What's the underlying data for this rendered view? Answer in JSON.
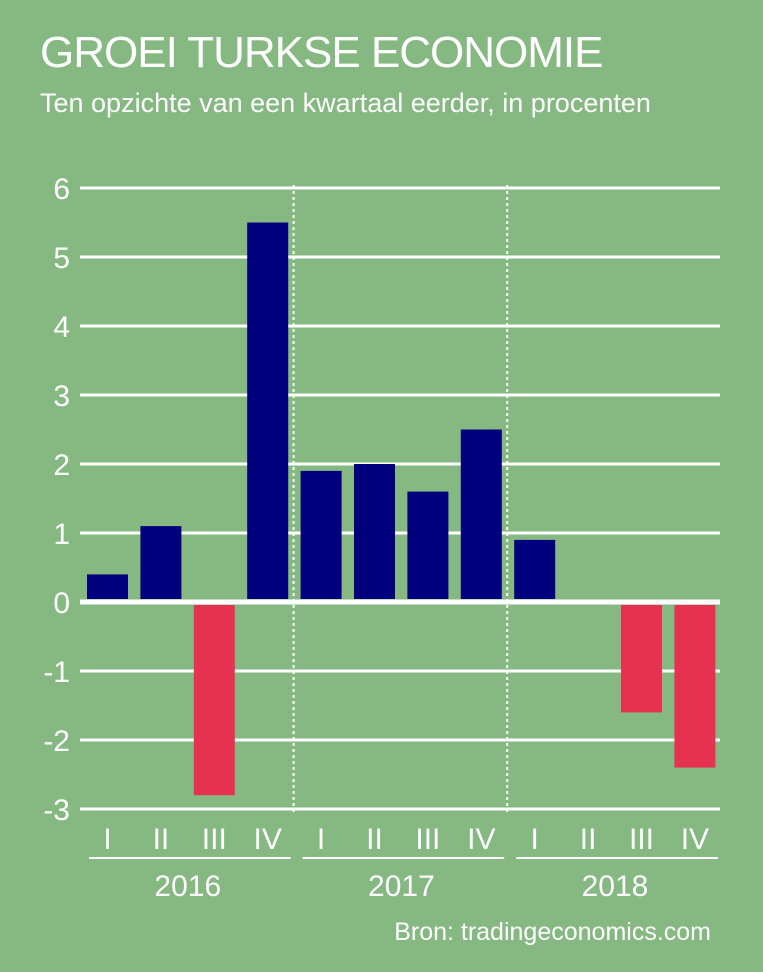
{
  "chart_data": {
    "type": "bar",
    "title": "GROEI TURKSE  ECONOMIE",
    "subtitle": "Ten opzichte van een kwartaal eerder, in procenten",
    "source": "Bron: tradingeconomics.com",
    "xlabel": "",
    "ylabel": "",
    "ylim": [
      -3,
      6
    ],
    "yticks": [
      "6",
      "5",
      "4",
      "3",
      "2",
      "1",
      "0",
      "-1",
      "-2",
      "-3"
    ],
    "grid": true,
    "groups": [
      {
        "year": "2016",
        "quarters": [
          "I",
          "II",
          "III",
          "IV"
        ],
        "values": [
          0.4,
          1.1,
          -2.8,
          5.5
        ]
      },
      {
        "year": "2017",
        "quarters": [
          "I",
          "II",
          "III",
          "IV"
        ],
        "values": [
          1.9,
          2.0,
          1.6,
          2.5
        ]
      },
      {
        "year": "2018",
        "quarters": [
          "I",
          "II",
          "III",
          "IV"
        ],
        "values": [
          0.9,
          0.0,
          -1.6,
          -2.4
        ]
      }
    ],
    "colors": {
      "positive": "#00007f",
      "negative": "#e63250",
      "background": "#86b882",
      "text": "#ffffff"
    }
  }
}
